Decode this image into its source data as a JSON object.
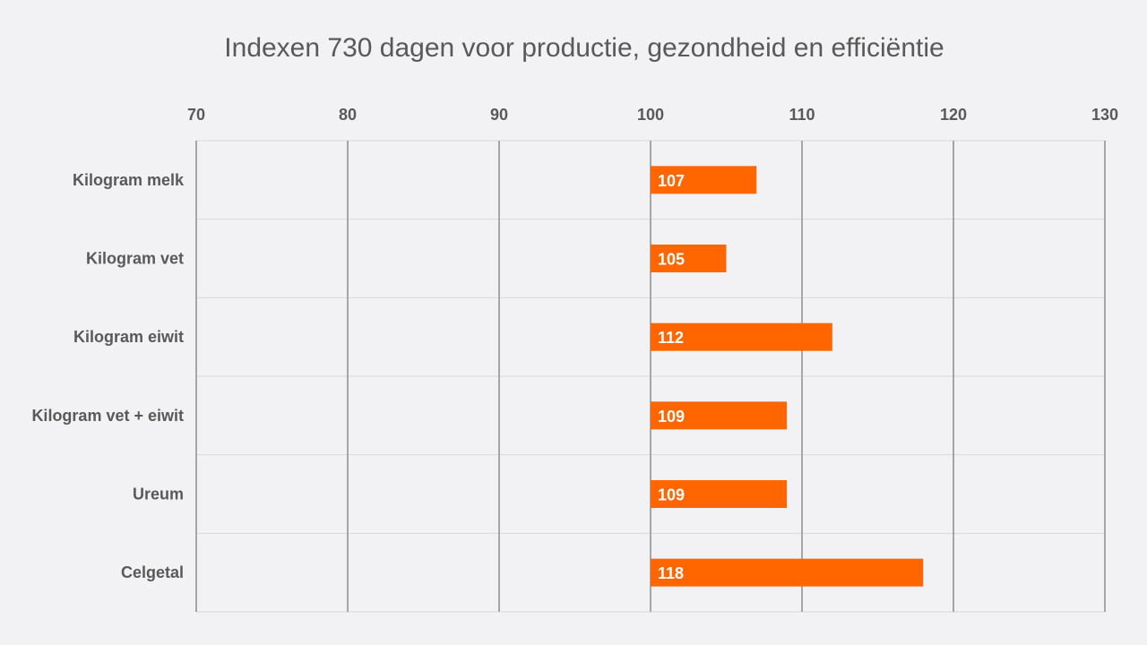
{
  "chart_data": {
    "type": "bar",
    "orientation": "horizontal",
    "title": "Indexen 730 dagen voor productie, gezondheid en efficiëntie",
    "categories": [
      "Kilogram melk",
      "Kilogram vet",
      "Kilogram eiwit",
      "Kilogram vet + eiwit",
      "Ureum",
      "Celgetal"
    ],
    "values": [
      107,
      105,
      112,
      109,
      109,
      118
    ],
    "data_labels": [
      "107",
      "105",
      "112",
      "109",
      "109",
      "118"
    ],
    "baseline": 100,
    "xlim": [
      70,
      130
    ],
    "xticks": [
      70,
      80,
      90,
      100,
      110,
      120,
      130
    ],
    "xtick_labels": [
      "70",
      "80",
      "90",
      "100",
      "110",
      "120",
      "130"
    ],
    "axis_position": "top",
    "grid": true,
    "legend": "none",
    "colors": {
      "bar": "#ff6600",
      "background": "#f2f1f3",
      "major_grid": "#a6a6a6",
      "minor_grid": "#d9d9d9",
      "text": "#595959",
      "bar_label": "#ffffff"
    }
  }
}
